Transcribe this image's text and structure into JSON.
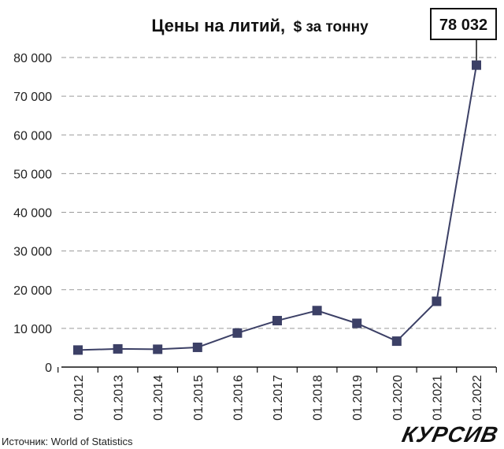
{
  "chart_data": {
    "type": "line",
    "title": "Цены на литий,",
    "title_unit": "$ за тонну",
    "categories": [
      "01.2012",
      "01.2013",
      "01.2014",
      "01.2015",
      "01.2016",
      "01.2017",
      "01.2018",
      "01.2019",
      "01.2020",
      "01.2021",
      "01.2022"
    ],
    "values": [
      4400,
      4700,
      4600,
      5100,
      8800,
      12000,
      14600,
      11300,
      6700,
      17000,
      78032
    ],
    "ylim": [
      0,
      80000
    ],
    "yticks": [
      0,
      10000,
      20000,
      30000,
      40000,
      50000,
      60000,
      70000,
      80000
    ],
    "ytick_labels": [
      "0",
      "10 000",
      "20 000",
      "30 000",
      "40 000",
      "50 000",
      "60 000",
      "70 000",
      "80 000"
    ],
    "callout": "78 032",
    "grid": "horizontal-dashed",
    "color": "#3c4066"
  },
  "footer": {
    "source": "Источник: World of Statistics",
    "logo": "КУРСИВ"
  }
}
